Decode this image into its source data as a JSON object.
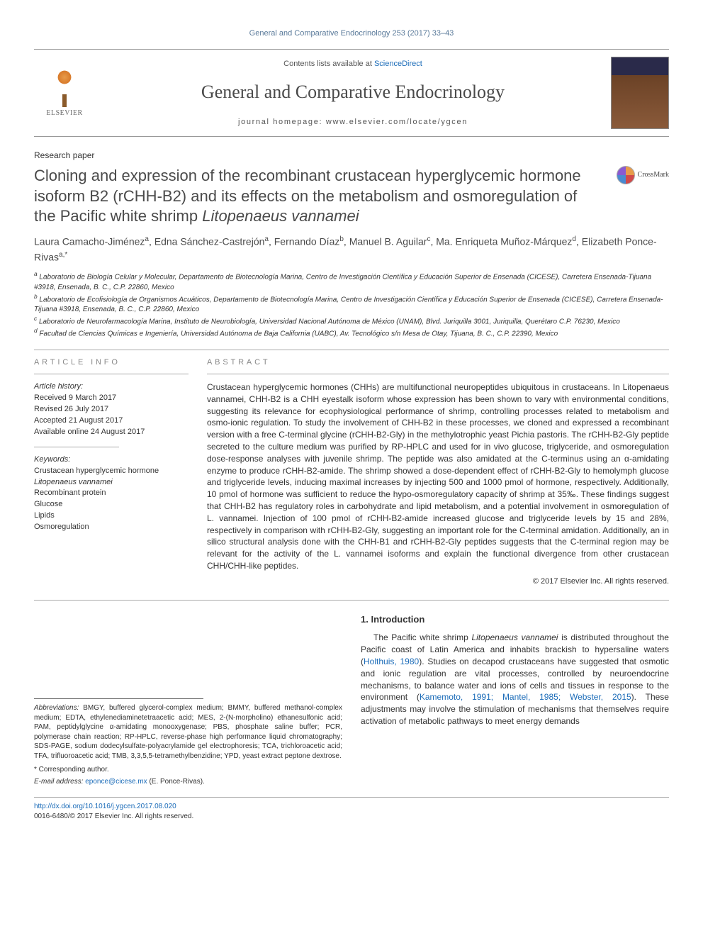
{
  "running_head": "General and Comparative Endocrinology 253 (2017) 33–43",
  "masthead": {
    "elsevier_label": "ELSEVIER",
    "contents_prefix": "Contents lists available at ",
    "contents_link": "ScienceDirect",
    "journal_title": "General and Comparative Endocrinology",
    "homepage_prefix": "journal homepage: ",
    "homepage_url": "www.elsevier.com/locate/ygcen"
  },
  "article_type": "Research paper",
  "crossmark_label": "CrossMark",
  "title_plain": "Cloning and expression of the recombinant crustacean hyperglycemic hormone isoform B2 (rCHH-B2) and its effects on the metabolism and osmoregulation of the Pacific white shrimp ",
  "title_italic": "Litopenaeus vannamei",
  "authors_html": "Laura Camacho-Jiménez<sup>a</sup>, Edna Sánchez-Castrejón<sup>a</sup>, Fernando Díaz<sup>b</sup>, Manuel B. Aguilar<sup>c</sup>, Ma. Enriqueta Muñoz-Márquez<sup>d</sup>, Elizabeth Ponce-Rivas<sup>a,*</sup>",
  "affiliations": [
    "a Laboratorio de Biología Celular y Molecular, Departamento de Biotecnología Marina, Centro de Investigación Científica y Educación Superior de Ensenada (CICESE), Carretera Ensenada-Tijuana #3918, Ensenada, B. C., C.P. 22860, Mexico",
    "b Laboratorio de Ecofisiología de Organismos Acuáticos, Departamento de Biotecnología Marina, Centro de Investigación Científica y Educación Superior de Ensenada (CICESE), Carretera Ensenada-Tijuana #3918, Ensenada, B. C., C.P. 22860, Mexico",
    "c Laboratorio de Neurofarmacología Marina, Instituto de Neurobiología, Universidad Nacional Autónoma de México (UNAM), Blvd. Juriquilla 3001, Juriquilla, Querétaro C.P. 76230, Mexico",
    "d Facultad de Ciencias Químicas e Ingeniería, Universidad Autónoma de Baja California (UABC), Av. Tecnológico s/n Mesa de Otay, Tijuana, B. C., C.P. 22390, Mexico"
  ],
  "info_heading": "ARTICLE INFO",
  "abstract_heading": "ABSTRACT",
  "history_label": "Article history:",
  "history": [
    "Received 9 March 2017",
    "Revised 26 July 2017",
    "Accepted 21 August 2017",
    "Available online 24 August 2017"
  ],
  "keywords_label": "Keywords:",
  "keywords": [
    "Crustacean hyperglycemic hormone",
    "Litopenaeus vannamei",
    "Recombinant protein",
    "Glucose",
    "Lipids",
    "Osmoregulation"
  ],
  "abstract": "Crustacean hyperglycemic hormones (CHHs) are multifunctional neuropeptides ubiquitous in crustaceans. In Litopenaeus vannamei, CHH-B2 is a CHH eyestalk isoform whose expression has been shown to vary with environmental conditions, suggesting its relevance for ecophysiological performance of shrimp, controlling processes related to metabolism and osmo-ionic regulation. To study the involvement of CHH-B2 in these processes, we cloned and expressed a recombinant version with a free C-terminal glycine (rCHH-B2-Gly) in the methylotrophic yeast Pichia pastoris. The rCHH-B2-Gly peptide secreted to the culture medium was purified by RP-HPLC and used for in vivo glucose, triglyceride, and osmoregulation dose-response analyses with juvenile shrimp. The peptide was also amidated at the C-terminus using an α-amidating enzyme to produce rCHH-B2-amide. The shrimp showed a dose-dependent effect of rCHH-B2-Gly to hemolymph glucose and triglyceride levels, inducing maximal increases by injecting 500 and 1000 pmol of hormone, respectively. Additionally, 10 pmol of hormone was sufficient to reduce the hypo-osmoregulatory capacity of shrimp at 35‰. These findings suggest that CHH-B2 has regulatory roles in carbohydrate and lipid metabolism, and a potential involvement in osmoregulation of L. vannamei. Injection of 100 pmol of rCHH-B2-amide increased glucose and triglyceride levels by 15 and 28%, respectively in comparison with rCHH-B2-Gly, suggesting an important role for the C-terminal amidation. Additionally, an in silico structural analysis done with the CHH-B1 and rCHH-B2-Gly peptides suggests that the C-terminal region may be relevant for the activity of the L. vannamei isoforms and explain the functional divergence from other crustacean CHH/CHH-like peptides.",
  "abstract_copyright": "© 2017 Elsevier Inc. All rights reserved.",
  "abbreviations_label": "Abbreviations:",
  "abbreviations_text": " BMGY, buffered glycerol-complex medium; BMMY, buffered methanol-complex medium; EDTA, ethylenediaminetetraacetic acid; MES, 2-(N-morpholino) ethanesulfonic acid; PAM, peptidylglycine α-amidating monooxygenase; PBS, phosphate saline buffer; PCR, polymerase chain reaction; RP-HPLC, reverse-phase high performance liquid chromatography; SDS-PAGE, sodium dodecylsulfate-polyacrylamide gel electrophoresis; TCA, trichloroacetic acid; TFA, trifluoroacetic acid; TMB, 3,3,5,5-tetramethylbenzidine; YPD, yeast extract peptone dextrose.",
  "corr_label": "* Corresponding author.",
  "email_label": "E-mail address: ",
  "email_value": "eponce@cicese.mx",
  "email_author": " (E. Ponce-Rivas).",
  "intro_heading": "1. Introduction",
  "intro_body_pre": "The Pacific white shrimp ",
  "intro_body_species": "Litopenaeus vannamei",
  "intro_body_post": " is distributed throughout the Pacific coast of Latin America and inhabits brackish to hypersaline waters (",
  "intro_cite1": "Holthuis, 1980",
  "intro_body_mid": "). Studies on decapod crustaceans have suggested that osmotic and ionic regulation are vital processes, controlled by neuroendocrine mechanisms, to balance water and ions of cells and tissues in response to the environment (",
  "intro_cite2": "Kamemoto, 1991; Mantel, 1985; Webster, 2015",
  "intro_body_end": "). These adjustments may involve the stimulation of mechanisms that themselves require activation of metabolic pathways to meet energy demands",
  "doi_url": "http://dx.doi.org/10.1016/j.ygcen.2017.08.020",
  "issn_line": "0016-6480/© 2017 Elsevier Inc. All rights reserved.",
  "colors": {
    "link": "#1a6bb8",
    "text": "#333333",
    "muted": "#888888",
    "rule": "#aaaaaa"
  },
  "typography": {
    "title_fontsize": 22,
    "journal_fontsize": 26,
    "body_fontsize": 12,
    "small_fontsize": 10,
    "font_family_body": "Arial, sans-serif",
    "font_family_serif": "Georgia, serif"
  }
}
